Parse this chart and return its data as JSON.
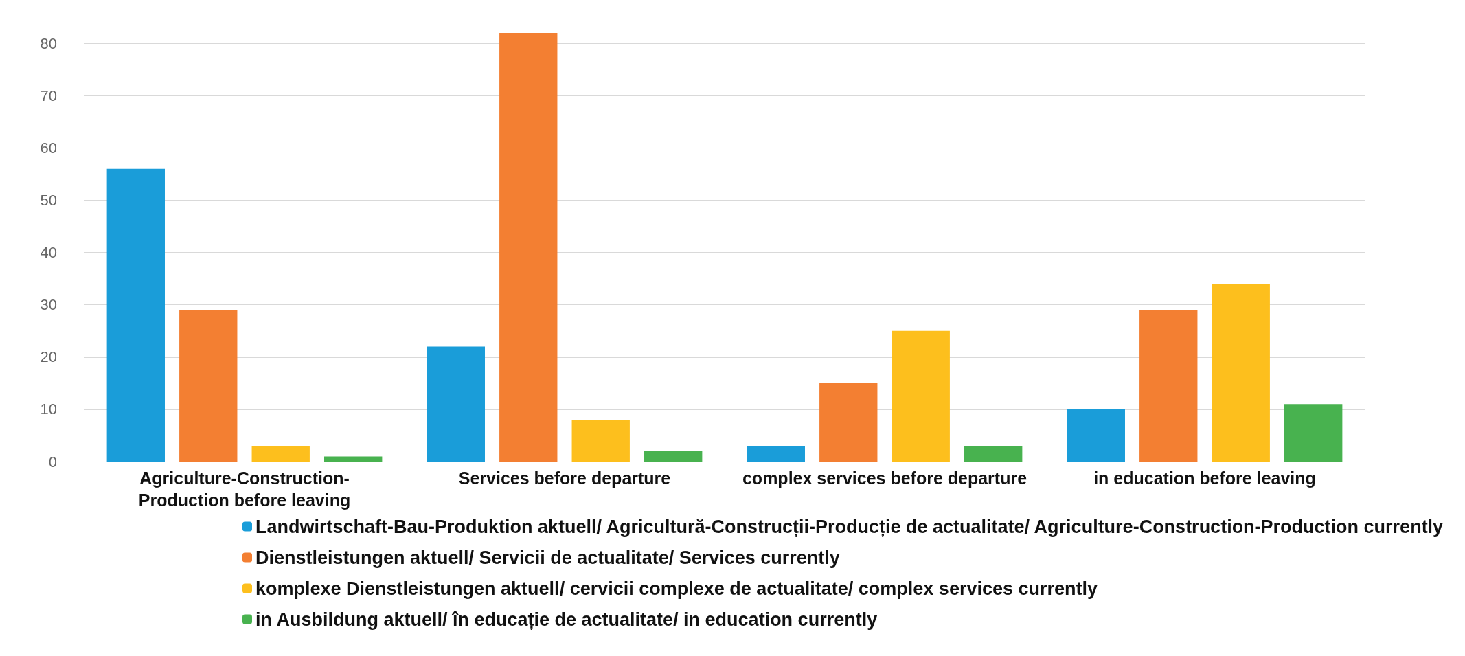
{
  "chart_data": {
    "type": "bar",
    "categories": [
      "Agriculture-Construction-Production before leaving",
      "Services before departure",
      "complex services before departure",
      "in education before leaving"
    ],
    "series": [
      {
        "name": "Landwirtschaft-Bau-Produktion aktuell/ Agricultură-Construcții-Producție de actualitate/ Agriculture-Construction-Production currently",
        "color": "#1a9dd9",
        "values": [
          56,
          22,
          3,
          10
        ]
      },
      {
        "name": "Dienstleistungen aktuell/ Servicii de actualitate/ Services currently",
        "color": "#f37f32",
        "values": [
          29,
          82,
          15,
          29
        ]
      },
      {
        "name": "komplexe Dienstleistungen aktuell/ cervicii complexe de actualitate/ complex services currently",
        "color": "#fdbf1d",
        "values": [
          3,
          8,
          25,
          34
        ]
      },
      {
        "name": "in Ausbildung aktuell/ în educație de actualitate/ in education currently",
        "color": "#48b24f",
        "values": [
          1,
          2,
          3,
          11
        ]
      }
    ],
    "ylim": [
      0,
      82
    ],
    "yticks": [
      0,
      10,
      20,
      30,
      40,
      50,
      60,
      70,
      80
    ],
    "grid": "y",
    "legend": "bottom"
  }
}
